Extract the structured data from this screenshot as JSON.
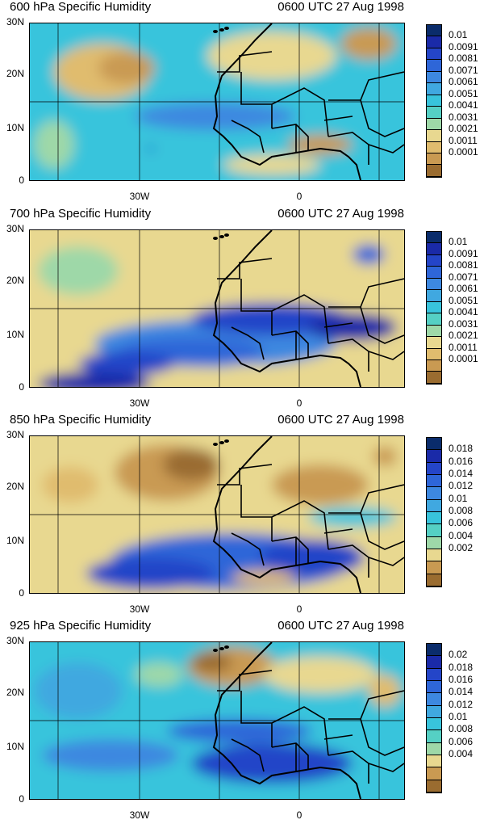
{
  "panels": [
    {
      "title": "600 hPa Specific Humidity",
      "datetime": "0600 UTC 27 Aug 1998",
      "yticks": [
        "30N",
        "20N",
        "10N",
        "0"
      ],
      "xticks": [
        "30W",
        "0"
      ],
      "colorbar_labels": [
        "0.01",
        "0.0091",
        "0.0081",
        "0.0071",
        "0.0061",
        "0.0051",
        "0.0041",
        "0.0031",
        "0.0021",
        "0.0011",
        "0.0001"
      ],
      "colorbar_colors": [
        "#0a2c6b",
        "#1a2aa8",
        "#2445c8",
        "#2e66d8",
        "#3d88e0",
        "#40a8e0",
        "#38c4dc",
        "#55d0c4",
        "#9ed8a8",
        "#e8d890",
        "#e0bc6e",
        "#c99a52",
        "#9a6c30"
      ]
    },
    {
      "title": "700 hPa Specific Humidity",
      "datetime": "0600 UTC 27 Aug 1998",
      "yticks": [
        "30N",
        "20N",
        "10N",
        "0"
      ],
      "xticks": [
        "30W",
        "0"
      ],
      "colorbar_labels": [
        "0.01",
        "0.0091",
        "0.0081",
        "0.0071",
        "0.0061",
        "0.0051",
        "0.0041",
        "0.0031",
        "0.0021",
        "0.0011",
        "0.0001"
      ],
      "colorbar_colors": [
        "#0a2c6b",
        "#1a2aa8",
        "#2445c8",
        "#2e66d8",
        "#3d88e0",
        "#40a8e0",
        "#38c4dc",
        "#55d0c4",
        "#9ed8a8",
        "#e8d890",
        "#e0bc6e",
        "#c99a52",
        "#9a6c30"
      ]
    },
    {
      "title": "850 hPa Specific Humidity",
      "datetime": "0600 UTC 27 Aug 1998",
      "yticks": [
        "30N",
        "20N",
        "10N",
        "0"
      ],
      "xticks": [
        "30W",
        "0"
      ],
      "colorbar_labels": [
        "0.018",
        "0.016",
        "0.014",
        "0.012",
        "0.01",
        "0.008",
        "0.006",
        "0.004",
        "0.002"
      ],
      "colorbar_colors": [
        "#0a2c6b",
        "#1a2aa8",
        "#2445c8",
        "#2e66d8",
        "#3d88e0",
        "#40a8e0",
        "#38c4dc",
        "#55d0c4",
        "#9ed8a8",
        "#e8d890",
        "#c99a52",
        "#9a6c30"
      ]
    },
    {
      "title": "925 hPa Specific Humidity",
      "datetime": "0600 UTC 27 Aug 1998",
      "yticks": [
        "30N",
        "20N",
        "10N",
        "0"
      ],
      "xticks": [
        "30W",
        "0"
      ],
      "colorbar_labels": [
        "0.02",
        "0.018",
        "0.016",
        "0.014",
        "0.012",
        "0.01",
        "0.008",
        "0.006",
        "0.004"
      ],
      "colorbar_colors": [
        "#0a2c6b",
        "#1a2aa8",
        "#2445c8",
        "#2e66d8",
        "#3d88e0",
        "#40a8e0",
        "#38c4dc",
        "#55d0c4",
        "#9ed8a8",
        "#e8d890",
        "#c99a52",
        "#9a6c30"
      ]
    }
  ]
}
